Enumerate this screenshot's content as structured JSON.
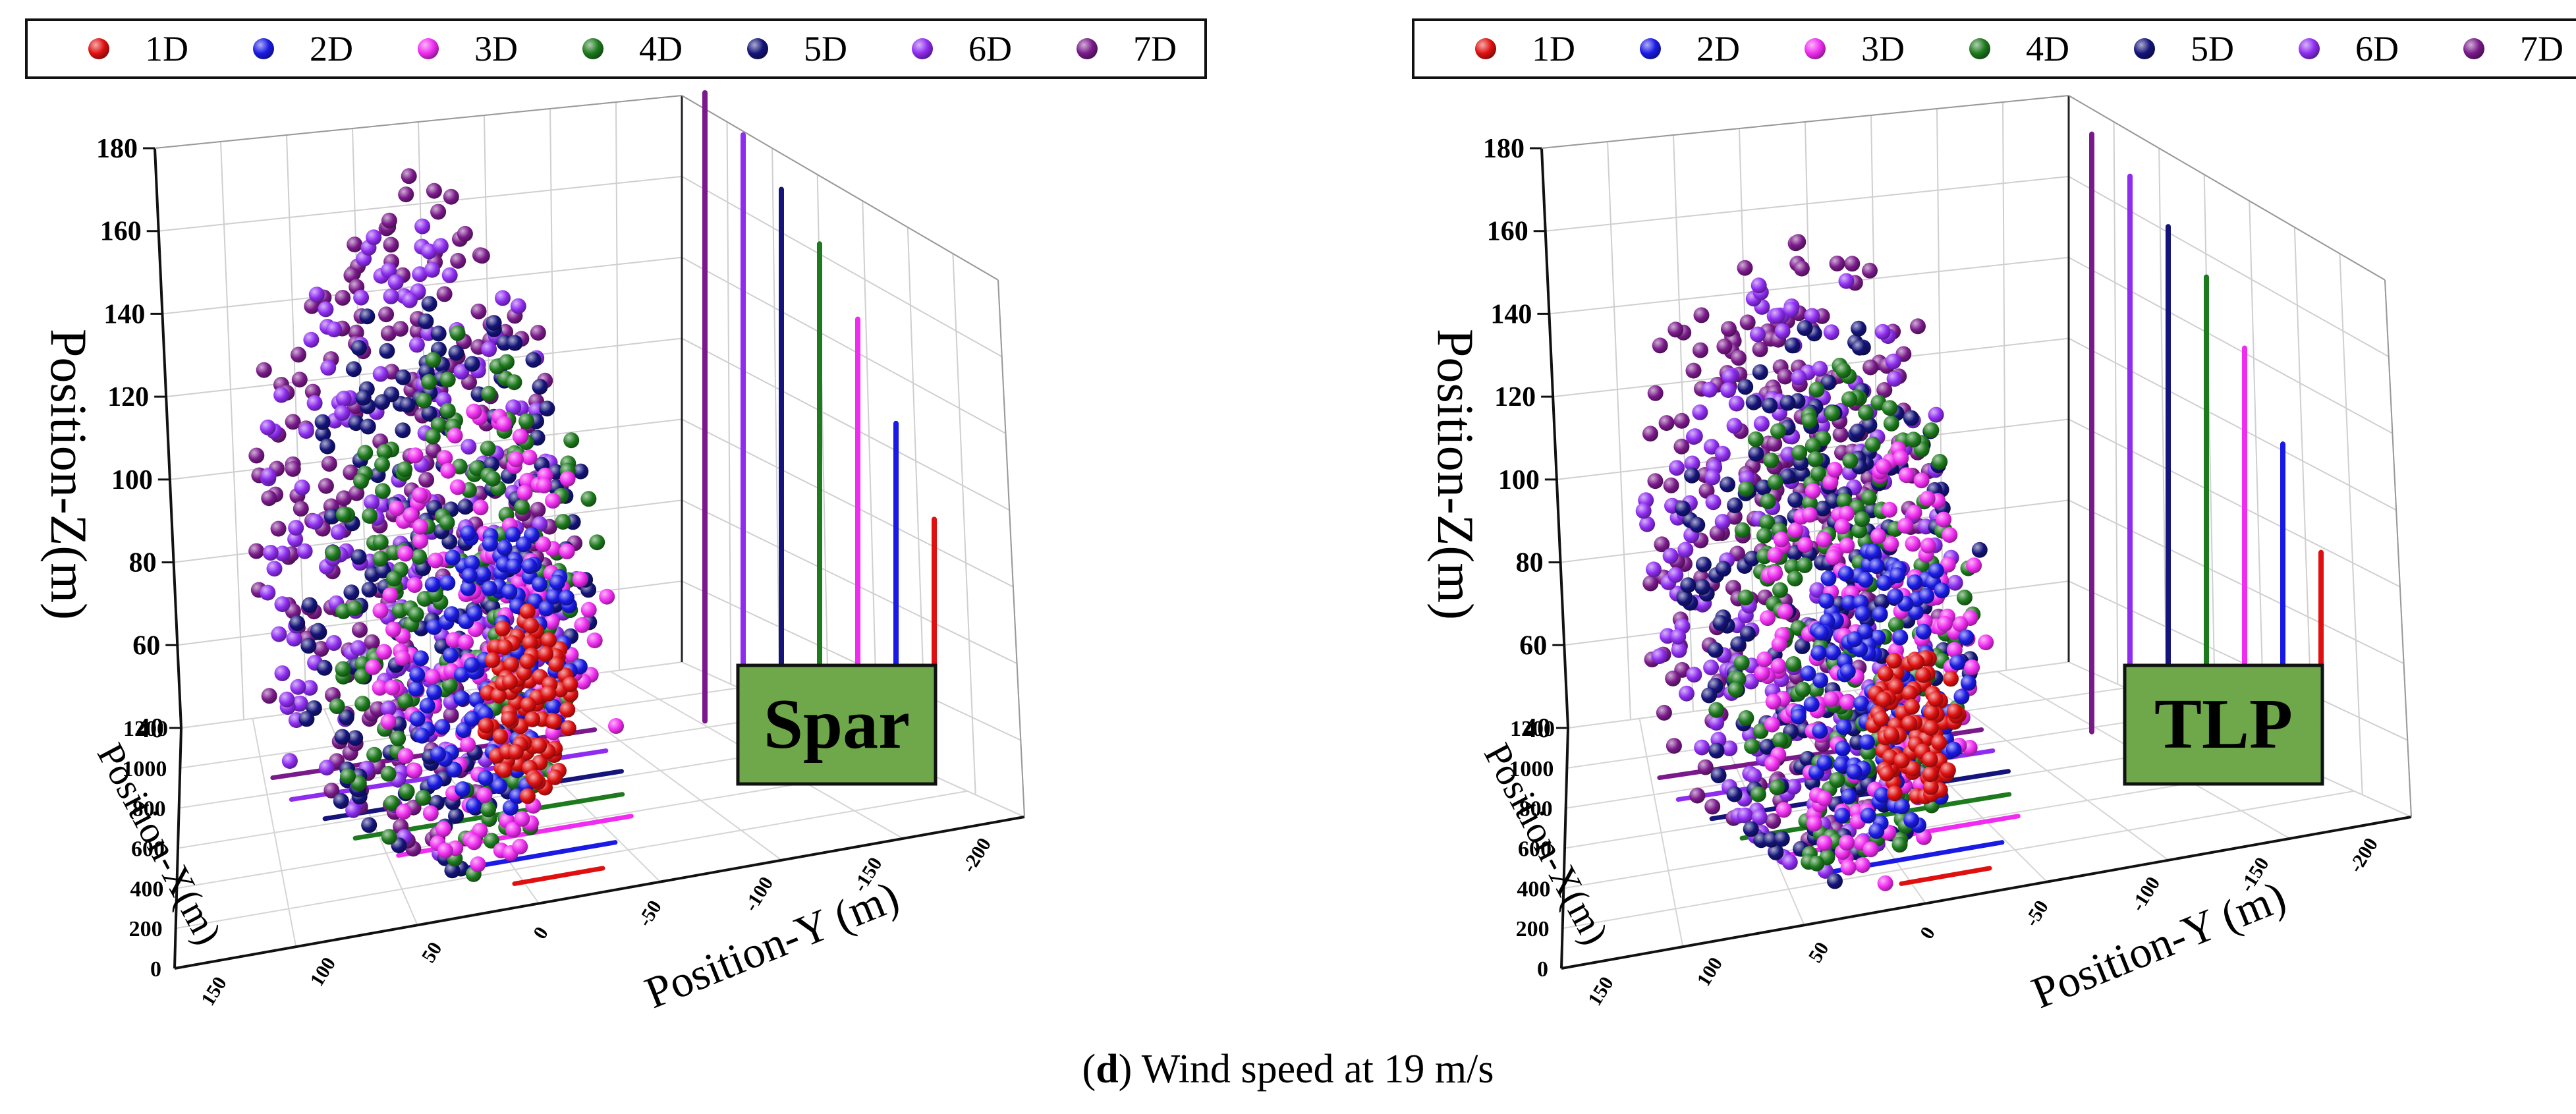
{
  "figure": {
    "caption_letter": "d",
    "caption_open": "(",
    "caption_close": ")",
    "caption_text": " Wind speed at 19 m/s"
  },
  "series_colors": {
    "1D": "#e01010",
    "2D": "#1a1ae6",
    "3D": "#f02cf0",
    "4D": "#1d7a1d",
    "5D": "#14147a",
    "6D": "#8e2cf0",
    "7D": "#7a1a8a"
  },
  "badge_fill": "#6fa84a",
  "chart_data": [
    {
      "type": "scatter",
      "platform_label": "Spar",
      "legend": [
        "1D",
        "2D",
        "3D",
        "4D",
        "5D",
        "6D",
        "7D"
      ],
      "zlabel": "Position-Z(m)",
      "xlabel": "Position-X(m)",
      "ylabel": "Position-Y (m)",
      "z_ticks": [
        "40",
        "60",
        "80",
        "100",
        "120",
        "140",
        "160",
        "180"
      ],
      "x_ticks": [
        "0",
        "200",
        "400",
        "600",
        "800",
        "1000",
        "1200"
      ],
      "y_ticks": [
        "150",
        "100",
        "50",
        "0",
        "-50",
        "-100",
        "-150",
        "-200"
      ],
      "zlim": [
        40,
        180
      ],
      "xlim": [
        0,
        1200
      ],
      "ylim": [
        150,
        -200
      ],
      "series": [
        {
          "name": "1D",
          "x_m": 126,
          "y_center_m": -15,
          "z_center_m": 82,
          "y_spread_m": 20,
          "z_spread_m": 20
        },
        {
          "name": "2D",
          "x_m": 252,
          "y_center_m": -10,
          "z_center_m": 83,
          "y_spread_m": 40,
          "z_spread_m": 38
        },
        {
          "name": "3D",
          "x_m": 378,
          "y_center_m": -10,
          "z_center_m": 87,
          "y_spread_m": 58,
          "z_spread_m": 55
        },
        {
          "name": "4D",
          "x_m": 504,
          "y_center_m": -5,
          "z_center_m": 90,
          "y_spread_m": 70,
          "z_spread_m": 66
        },
        {
          "name": "5D",
          "x_m": 630,
          "y_center_m": -5,
          "z_center_m": 93,
          "y_spread_m": 82,
          "z_spread_m": 72
        },
        {
          "name": "6D",
          "x_m": 756,
          "y_center_m": 0,
          "z_center_m": 96,
          "y_spread_m": 92,
          "z_spread_m": 78
        },
        {
          "name": "7D",
          "x_m": 882,
          "y_center_m": 0,
          "z_center_m": 98,
          "y_spread_m": 100,
          "z_spread_m": 82
        }
      ]
    },
    {
      "type": "scatter",
      "platform_label": "TLP",
      "legend": [
        "1D",
        "2D",
        "3D",
        "4D",
        "5D",
        "6D",
        "7D"
      ],
      "zlabel": "Position-Z(m)",
      "xlabel": "Position-X(m)",
      "ylabel": "Position-Y (m)",
      "z_ticks": [
        "40",
        "60",
        "80",
        "100",
        "120",
        "140",
        "160",
        "180"
      ],
      "x_ticks": [
        "0",
        "200",
        "400",
        "600",
        "800",
        "1000",
        "1200"
      ],
      "y_ticks": [
        "150",
        "100",
        "50",
        "0",
        "-50",
        "-100",
        "-150",
        "-200"
      ],
      "zlim": [
        40,
        180
      ],
      "xlim": [
        0,
        1200
      ],
      "ylim": [
        150,
        -200
      ],
      "series": [
        {
          "name": "1D",
          "x_m": 126,
          "y_center_m": -15,
          "z_center_m": 76,
          "y_spread_m": 20,
          "z_spread_m": 18
        },
        {
          "name": "2D",
          "x_m": 252,
          "y_center_m": -10,
          "z_center_m": 80,
          "y_spread_m": 40,
          "z_spread_m": 36
        },
        {
          "name": "3D",
          "x_m": 378,
          "y_center_m": -10,
          "z_center_m": 83,
          "y_spread_m": 58,
          "z_spread_m": 52
        },
        {
          "name": "4D",
          "x_m": 504,
          "y_center_m": -5,
          "z_center_m": 86,
          "y_spread_m": 70,
          "z_spread_m": 62
        },
        {
          "name": "5D",
          "x_m": 630,
          "y_center_m": -5,
          "z_center_m": 88,
          "y_spread_m": 82,
          "z_spread_m": 68
        },
        {
          "name": "6D",
          "x_m": 756,
          "y_center_m": 0,
          "z_center_m": 90,
          "y_spread_m": 92,
          "z_spread_m": 74
        },
        {
          "name": "7D",
          "x_m": 882,
          "y_center_m": 0,
          "z_center_m": 92,
          "y_spread_m": 100,
          "z_spread_m": 78
        }
      ]
    }
  ]
}
